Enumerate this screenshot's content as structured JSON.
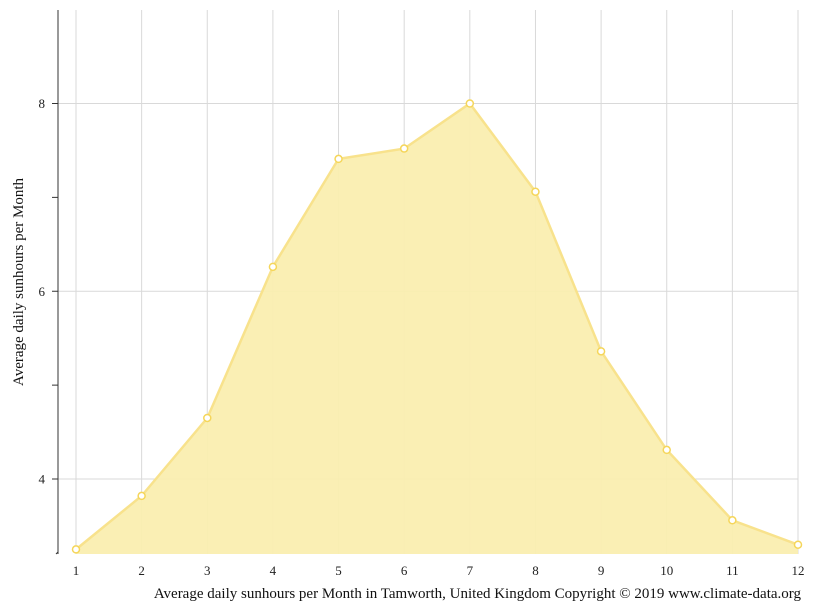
{
  "chart_data": {
    "type": "area",
    "x": [
      1,
      2,
      3,
      4,
      5,
      6,
      7,
      8,
      9,
      10,
      11,
      12
    ],
    "series": [
      {
        "values": [
          3.25,
          3.82,
          4.65,
          6.26,
          7.41,
          7.52,
          8.0,
          7.06,
          5.36,
          4.31,
          3.56,
          3.3
        ]
      }
    ],
    "xlabel": "",
    "ylabel": "Average daily sunhours per Month",
    "xlim": [
      1,
      12
    ],
    "ylim": [
      3.25,
      9.0
    ],
    "yticks_major": [
      4,
      6,
      8
    ],
    "yticks_minor": [
      5,
      7
    ],
    "grid": true,
    "caption": "Average daily sunhours per Month in Tamworth, United Kingdom Copyright © 2019 www.climate-data.org",
    "colors": {
      "fill": "#faeeb0",
      "line": "#f8e28c",
      "marker_stroke": "#f5d65a",
      "grid": "#d9d9d9",
      "axis": "#333333"
    }
  }
}
